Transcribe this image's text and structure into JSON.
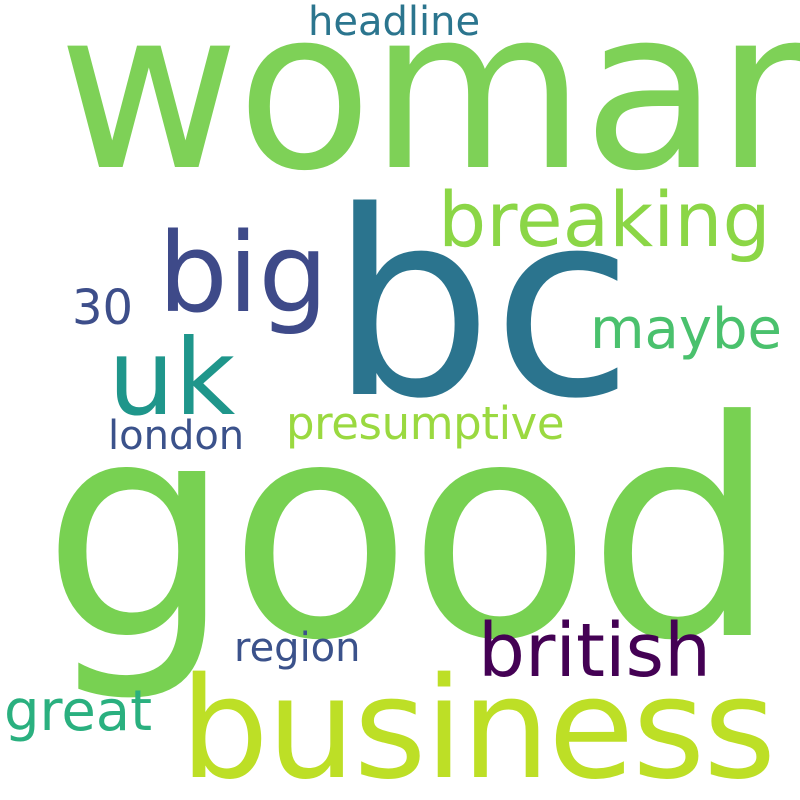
{
  "words": [
    {
      "id": "woman",
      "text": "woman",
      "color": "#7ed157"
    },
    {
      "id": "bc",
      "text": "bc",
      "color": "#2b748e"
    },
    {
      "id": "good",
      "text": "good",
      "color": "#78d152"
    },
    {
      "id": "business",
      "text": "business",
      "color": "#bddf26"
    },
    {
      "id": "breaking",
      "text": "breaking",
      "color": "#8bd646"
    },
    {
      "id": "big",
      "text": "big",
      "color": "#3e4a89"
    },
    {
      "id": "uk",
      "text": "uk",
      "color": "#1f968b"
    },
    {
      "id": "maybe",
      "text": "maybe",
      "color": "#4ac16d"
    },
    {
      "id": "british",
      "text": "british",
      "color": "#440154"
    },
    {
      "id": "presumptive",
      "text": "presumptive",
      "color": "#9ad940"
    },
    {
      "id": "london",
      "text": "london",
      "color": "#3b528b"
    },
    {
      "id": "30",
      "text": "30",
      "color": "#3d4e8a"
    },
    {
      "id": "headline",
      "text": "headline",
      "color": "#2b758e"
    },
    {
      "id": "region",
      "text": "region",
      "color": "#3b528b"
    },
    {
      "id": "great",
      "text": "great",
      "color": "#2ab07f"
    }
  ]
}
